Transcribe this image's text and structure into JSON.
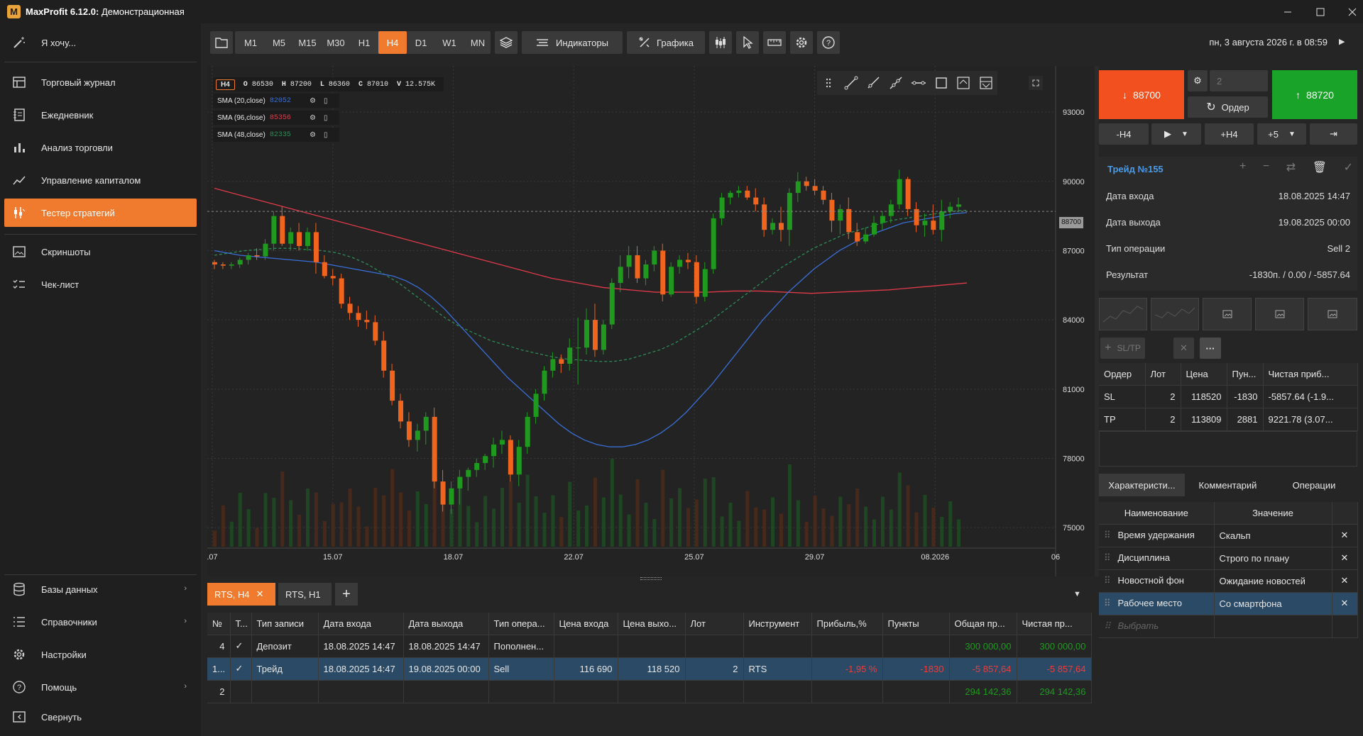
{
  "app": {
    "name": "MaxProfit 6.12.0:",
    "mode": "Демонстрационная"
  },
  "sidebar": {
    "items": [
      {
        "label": "Я хочу...",
        "icon": "magic-wand-icon"
      },
      {
        "label": "Торговый журнал",
        "icon": "table-icon"
      },
      {
        "label": "Ежедневник",
        "icon": "notebook-icon"
      },
      {
        "label": "Анализ торговли",
        "icon": "bar-chart-icon"
      },
      {
        "label": "Управление капиталом",
        "icon": "line-chart-icon"
      },
      {
        "label": "Тестер стратегий",
        "icon": "strategy-tester-icon"
      },
      {
        "label": "Скриншоты",
        "icon": "image-icon"
      },
      {
        "label": "Чек-лист",
        "icon": "checklist-icon"
      }
    ],
    "bottom_items": [
      {
        "label": "Базы данных",
        "icon": "database-icon"
      },
      {
        "label": "Справочники",
        "icon": "list-icon"
      },
      {
        "label": "Настройки",
        "icon": "gear-icon"
      },
      {
        "label": "Помощь",
        "icon": "help-icon"
      },
      {
        "label": "Свернуть",
        "icon": "collapse-icon"
      }
    ]
  },
  "toolbar": {
    "timeframes": [
      "M1",
      "M5",
      "M15",
      "M30",
      "H1",
      "H4",
      "D1",
      "W1",
      "MN"
    ],
    "active_timeframe": "H4",
    "indicators_label": "Индикаторы",
    "graphics_label": "Графика",
    "datetime": "пн, 3 августа 2026 г. в 08:59"
  },
  "chart": {
    "status": {
      "tf": "H4",
      "o_label": "O",
      "o": "86530",
      "h_label": "H",
      "h": "87200",
      "l_label": "L",
      "l": "86360",
      "c_label": "C",
      "c": "87010",
      "v_label": "V",
      "v": "12.575K"
    },
    "indicators": [
      {
        "name": "SMA (20,close)",
        "value": "82052",
        "color": "#3a6fd8"
      },
      {
        "name": "SMA (96,close)",
        "value": "85356",
        "color": "#e03a4a"
      },
      {
        "name": "SMA (48,close)",
        "value": "82335",
        "color": "#2e8b57"
      }
    ],
    "y_ticks": [
      "93000",
      "90000",
      "87000",
      "84000",
      "81000",
      "78000",
      "75000"
    ],
    "x_ticks": [
      ".07",
      "15.07",
      "18.07",
      "22.07",
      "25.07",
      "29.07",
      "08.2026",
      "06"
    ],
    "current_price": "88700"
  },
  "chart_data": {
    "type": "candlestick",
    "y_range": [
      73500,
      95000
    ],
    "candles": [
      [
        86500,
        86600,
        86200,
        86400
      ],
      [
        86400,
        86500,
        86200,
        86350
      ],
      [
        86350,
        86500,
        86200,
        86400
      ],
      [
        86400,
        86700,
        86250,
        86600
      ],
      [
        86600,
        86900,
        86400,
        86800
      ],
      [
        86800,
        87100,
        86600,
        86750
      ],
      [
        86750,
        87500,
        86600,
        87300
      ],
      [
        87300,
        88700,
        87000,
        88500
      ],
      [
        88500,
        88900,
        87200,
        87300
      ],
      [
        87300,
        88000,
        87000,
        87800
      ],
      [
        87800,
        88200,
        87000,
        87200
      ],
      [
        87200,
        88000,
        87000,
        87800
      ],
      [
        87800,
        88200,
        86000,
        86500
      ],
      [
        86500,
        86800,
        85800,
        85900
      ],
      [
        85900,
        86200,
        85500,
        85800
      ],
      [
        85800,
        86000,
        84500,
        84700
      ],
      [
        84700,
        85000,
        84000,
        84300
      ],
      [
        84300,
        84600,
        83700,
        84000
      ],
      [
        84000,
        84400,
        83600,
        83900
      ],
      [
        83900,
        84200,
        82900,
        83100
      ],
      [
        83100,
        83500,
        81500,
        81800
      ],
      [
        81800,
        82100,
        80300,
        80500
      ],
      [
        80500,
        80800,
        79300,
        79600
      ],
      [
        79600,
        80000,
        78500,
        78800
      ],
      [
        78800,
        79500,
        78300,
        79200
      ],
      [
        79200,
        80000,
        78600,
        79800
      ],
      [
        79800,
        80200,
        76700,
        77000
      ],
      [
        77000,
        77500,
        75700,
        76000
      ],
      [
        76000,
        77000,
        75600,
        76700
      ],
      [
        76700,
        77500,
        76000,
        77200
      ],
      [
        77200,
        77600,
        76600,
        77500
      ],
      [
        77500,
        78000,
        77200,
        77800
      ],
      [
        77800,
        78200,
        77500,
        78100
      ],
      [
        78100,
        78900,
        77600,
        78600
      ],
      [
        78600,
        79200,
        78200,
        78800
      ],
      [
        78800,
        79000,
        77000,
        77300
      ],
      [
        77300,
        78800,
        76800,
        78500
      ],
      [
        78500,
        80000,
        78200,
        79800
      ],
      [
        79800,
        81000,
        79500,
        80800
      ],
      [
        80800,
        82000,
        80500,
        81800
      ],
      [
        81800,
        82600,
        81500,
        82300
      ],
      [
        82300,
        82500,
        81700,
        82100
      ],
      [
        82100,
        83200,
        81800,
        82800
      ],
      [
        82800,
        84100,
        81200,
        82800
      ],
      [
        82800,
        84500,
        82500,
        84000
      ],
      [
        84000,
        84700,
        82400,
        82700
      ],
      [
        82700,
        84000,
        82500,
        83800
      ],
      [
        83800,
        85800,
        83600,
        85600
      ],
      [
        85600,
        86800,
        85200,
        86300
      ],
      [
        86300,
        87200,
        85800,
        86800
      ],
      [
        86800,
        87200,
        85600,
        85800
      ],
      [
        85800,
        86600,
        85500,
        86400
      ],
      [
        86400,
        87200,
        86100,
        87000
      ],
      [
        87000,
        87300,
        84800,
        85100
      ],
      [
        85100,
        86500,
        85000,
        86300
      ],
      [
        86300,
        86800,
        86000,
        86600
      ],
      [
        86600,
        86900,
        86200,
        86500
      ],
      [
        86500,
        86800,
        84700,
        85000
      ],
      [
        85000,
        86500,
        84800,
        86200
      ],
      [
        86200,
        88600,
        86000,
        88400
      ],
      [
        88400,
        89500,
        88100,
        89300
      ],
      [
        89300,
        89600,
        89000,
        89500
      ],
      [
        89500,
        89800,
        89300,
        89600
      ],
      [
        89600,
        89800,
        89200,
        89300
      ],
      [
        89300,
        89700,
        88700,
        89000
      ],
      [
        89000,
        89300,
        87600,
        87900
      ],
      [
        87900,
        88400,
        87700,
        88200
      ],
      [
        88200,
        88900,
        87400,
        87900
      ],
      [
        87900,
        89700,
        87200,
        89500
      ],
      [
        89500,
        90400,
        89100,
        90000
      ],
      [
        90000,
        90200,
        89600,
        89800
      ],
      [
        89800,
        90100,
        89400,
        89600
      ],
      [
        89600,
        89800,
        89000,
        89200
      ],
      [
        89200,
        89500,
        87800,
        88300
      ],
      [
        88300,
        89000,
        87700,
        88800
      ],
      [
        88800,
        89300,
        87500,
        87800
      ],
      [
        87800,
        88200,
        87200,
        87400
      ],
      [
        87400,
        88000,
        87300,
        87700
      ],
      [
        87700,
        88500,
        87600,
        88200
      ],
      [
        88200,
        88700,
        87900,
        88500
      ],
      [
        88500,
        89200,
        88200,
        89000
      ],
      [
        89000,
        90500,
        88800,
        90100
      ],
      [
        90100,
        90200,
        88500,
        88800
      ],
      [
        88800,
        89100,
        87800,
        88100
      ],
      [
        88100,
        88600,
        87600,
        88300
      ],
      [
        88300,
        89000,
        87700,
        87900
      ],
      [
        87900,
        89200,
        87400,
        88700
      ],
      [
        88700,
        89100,
        88400,
        88900
      ],
      [
        88900,
        89300,
        88700,
        89000
      ]
    ],
    "sma20": [
      87000,
      86900,
      86800,
      86750,
      86700,
      86650,
      86600,
      86550,
      86500,
      86400,
      86300,
      86200,
      86100,
      86000,
      85900,
      85700,
      85400,
      85000,
      84500,
      83900,
      83300,
      82700,
      82100,
      81500,
      81000,
      80500,
      80000,
      79500,
      79100,
      78800,
      78600,
      78500,
      78500,
      78600,
      78800,
      79100,
      79500,
      80000,
      80600,
      81200,
      81900,
      82600,
      83300,
      84000,
      84600,
      85200,
      85700,
      86200,
      86600,
      87000,
      87300,
      87600,
      87800,
      88000,
      88200,
      88300,
      88400,
      88500,
      88600,
      88650
    ],
    "sma48": [
      86800,
      86900,
      87000,
      87050,
      87100,
      87100,
      87050,
      87000,
      86900,
      86700,
      86400,
      86000,
      85600,
      85100,
      84600,
      84100,
      83700,
      83400,
      83100,
      82900,
      82700,
      82550,
      82400,
      82300,
      82250,
      82200,
      82200,
      82300,
      82500,
      82700,
      83000,
      83400,
      83800,
      84300,
      84800,
      85300,
      85800,
      86300,
      86700,
      87100,
      87400,
      87700,
      87900,
      88100,
      88300,
      88400,
      88500,
      88600,
      88700,
      88750
    ],
    "sma96": [
      89700,
      89400,
      89100,
      88800,
      88500,
      88200,
      87900,
      87600,
      87300,
      87000,
      86700,
      86400,
      86100,
      85800,
      85600,
      85400,
      85300,
      85200,
      85200,
      85200,
      85250,
      85250,
      85200,
      85150,
      85200,
      85250,
      85300,
      85400,
      85500,
      85600
    ]
  },
  "bottom_tabs": [
    "RTS, H4",
    "RTS, H1"
  ],
  "journal": {
    "columns": [
      "№",
      "Т...",
      "Тип записи",
      "Дата входа",
      "Дата выхода",
      "Тип опера...",
      "Цена входа",
      "Цена выхо...",
      "Лот",
      "Инструмент",
      "Прибыль,%",
      "Пункты",
      "Общая пр...",
      "Чистая пр..."
    ],
    "rows": [
      [
        "4",
        "✓",
        "Депозит",
        "18.08.2025 14:47",
        "18.08.2025 14:47",
        "Пополнен...",
        "",
        "",
        "",
        "",
        "",
        "",
        "300 000,00",
        "300 000,00"
      ],
      [
        "1...",
        "✓",
        "Трейд",
        "18.08.2025 14:47",
        "19.08.2025 00:00",
        "Sell",
        "116 690",
        "118 520",
        "2",
        "RTS",
        "-1,95 %",
        "-1830",
        "-5 857,64",
        "-5 857,64"
      ],
      [
        "2",
        "",
        "",
        "",
        "",
        "",
        "",
        "",
        "",
        "",
        "",
        "",
        "294 142,36",
        "294 142,36"
      ]
    ]
  },
  "panel": {
    "sell_price": "88700",
    "buy_price": "88720",
    "lot": "2",
    "order_label": "Ордер",
    "minus_tf": "-H4",
    "plus_tf": "+H4",
    "plus_n": "+5",
    "trade_title": "Трейд №155",
    "fields": [
      {
        "k": "Дата входа",
        "v": "18.08.2025 14:47"
      },
      {
        "k": "Дата выхода",
        "v": "19.08.2025 00:00"
      },
      {
        "k": "Тип операции",
        "v": "Sell 2"
      },
      {
        "k": "Результат",
        "v": "-1830п. / 0.00 / -5857.64"
      }
    ],
    "sltp_label": "SL/TP",
    "orders_cols": [
      "Ордер",
      "Лот",
      "Цена",
      "Пун...",
      "Чистая приб..."
    ],
    "orders": [
      [
        "SL",
        "2",
        "118520",
        "-1830",
        "-5857.64 (-1.9..."
      ],
      [
        "TP",
        "2",
        "113809",
        "2881",
        "9221.78 (3.07..."
      ]
    ],
    "tabs": [
      "Характеристи...",
      "Комментарий",
      "Операции"
    ],
    "char_cols": [
      "Наименование",
      "Значение"
    ],
    "chars": [
      [
        "Время удержания",
        "Скальп"
      ],
      [
        "Дисциплина",
        "Строго по плану"
      ],
      [
        "Новостной фон",
        "Ожидание новостей"
      ],
      [
        "Рабочее место",
        "Со смартфона"
      ]
    ],
    "choose": "Выбрать"
  }
}
